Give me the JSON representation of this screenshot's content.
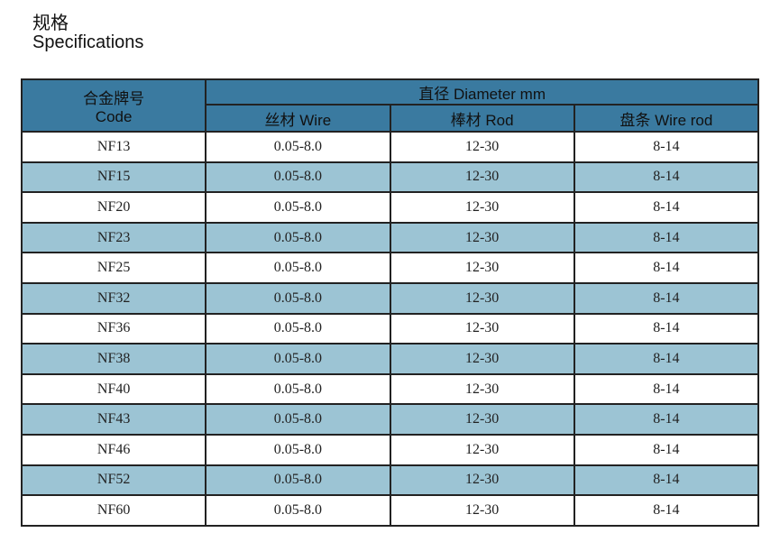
{
  "title_cn": "规格",
  "title_en": "Specifications",
  "header": {
    "code_cn": "合金牌号",
    "code_en": "Code",
    "diameter": "直径 Diameter mm",
    "wire": "丝材 Wire",
    "rod": "棒材 Rod",
    "wire_rod": "盘条 Wire rod"
  },
  "colors": {
    "header": "#3a7aa0",
    "alt_row": "#9cc4d4"
  },
  "rows": [
    [
      "NF13",
      "0.05-8.0",
      "12-30",
      "8-14"
    ],
    [
      "NF15",
      "0.05-8.0",
      "12-30",
      "8-14"
    ],
    [
      "NF20",
      "0.05-8.0",
      "12-30",
      "8-14"
    ],
    [
      "NF23",
      "0.05-8.0",
      "12-30",
      "8-14"
    ],
    [
      "NF25",
      "0.05-8.0",
      "12-30",
      "8-14"
    ],
    [
      "NF32",
      "0.05-8.0",
      "12-30",
      "8-14"
    ],
    [
      "NF36",
      "0.05-8.0",
      "12-30",
      "8-14"
    ],
    [
      "NF38",
      "0.05-8.0",
      "12-30",
      "8-14"
    ],
    [
      "NF40",
      "0.05-8.0",
      "12-30",
      "8-14"
    ],
    [
      "NF43",
      "0.05-8.0",
      "12-30",
      "8-14"
    ],
    [
      "NF46",
      "0.05-8.0",
      "12-30",
      "8-14"
    ],
    [
      "NF52",
      "0.05-8.0",
      "12-30",
      "8-14"
    ],
    [
      "NF60",
      "0.05-8.0",
      "12-30",
      "8-14"
    ]
  ]
}
